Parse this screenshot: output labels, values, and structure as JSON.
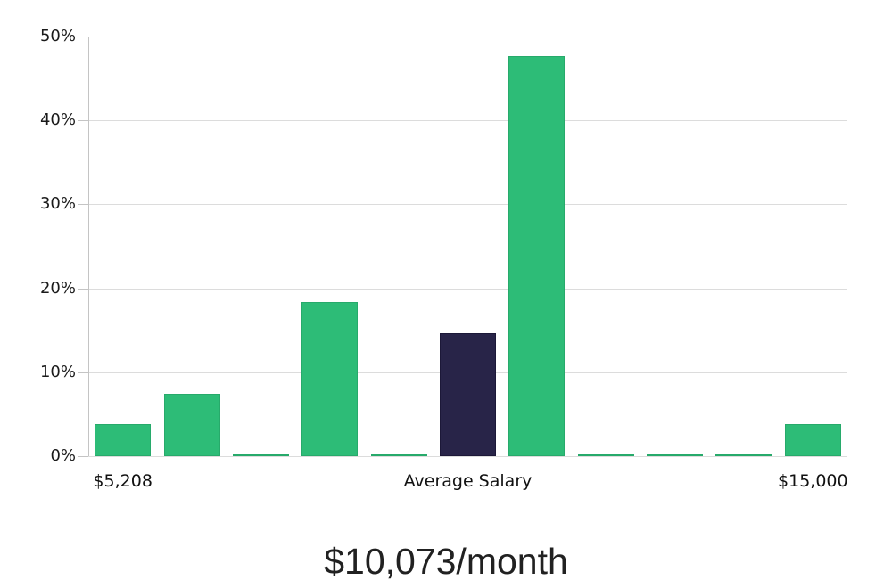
{
  "chart_data": {
    "type": "bar",
    "title": "$10,073/month",
    "xlabel": "",
    "ylabel": "",
    "ylim": [
      0,
      50
    ],
    "grid": true,
    "legend": false,
    "y_ticks": [
      {
        "value": 0,
        "label": "0%"
      },
      {
        "value": 10,
        "label": "10%"
      },
      {
        "value": 20,
        "label": "20%"
      },
      {
        "value": 30,
        "label": "30%"
      },
      {
        "value": 40,
        "label": "40%"
      },
      {
        "value": 50,
        "label": "50%"
      }
    ],
    "bars": [
      {
        "value": 3.8,
        "highlighted": false
      },
      {
        "value": 7.4,
        "highlighted": false
      },
      {
        "value": 0.15,
        "highlighted": false
      },
      {
        "value": 18.4,
        "highlighted": false
      },
      {
        "value": 0.15,
        "highlighted": false
      },
      {
        "value": 14.7,
        "highlighted": true
      },
      {
        "value": 47.7,
        "highlighted": false
      },
      {
        "value": 0.15,
        "highlighted": false
      },
      {
        "value": 0.15,
        "highlighted": false
      },
      {
        "value": 0.15,
        "highlighted": false
      },
      {
        "value": 3.8,
        "highlighted": false
      }
    ],
    "x_tick_labels": [
      {
        "bar_index": 0,
        "label": "$5,208",
        "name": "x-axis-label-min-salary"
      },
      {
        "bar_index": 5,
        "label": "Average Salary",
        "name": "x-axis-label-average-salary"
      },
      {
        "bar_index": 10,
        "label": "$15,000",
        "name": "x-axis-label-max-salary"
      }
    ],
    "colors": {
      "bar": "#2dbc77",
      "bar_border": "#27aa6b",
      "highlight": "#282448",
      "highlight_border": "#1c1838",
      "gridline": "#dcdcdc",
      "axis": "#c4c4c4",
      "tick_label_color": "#1a1a1a",
      "title_color": "#212121"
    }
  }
}
